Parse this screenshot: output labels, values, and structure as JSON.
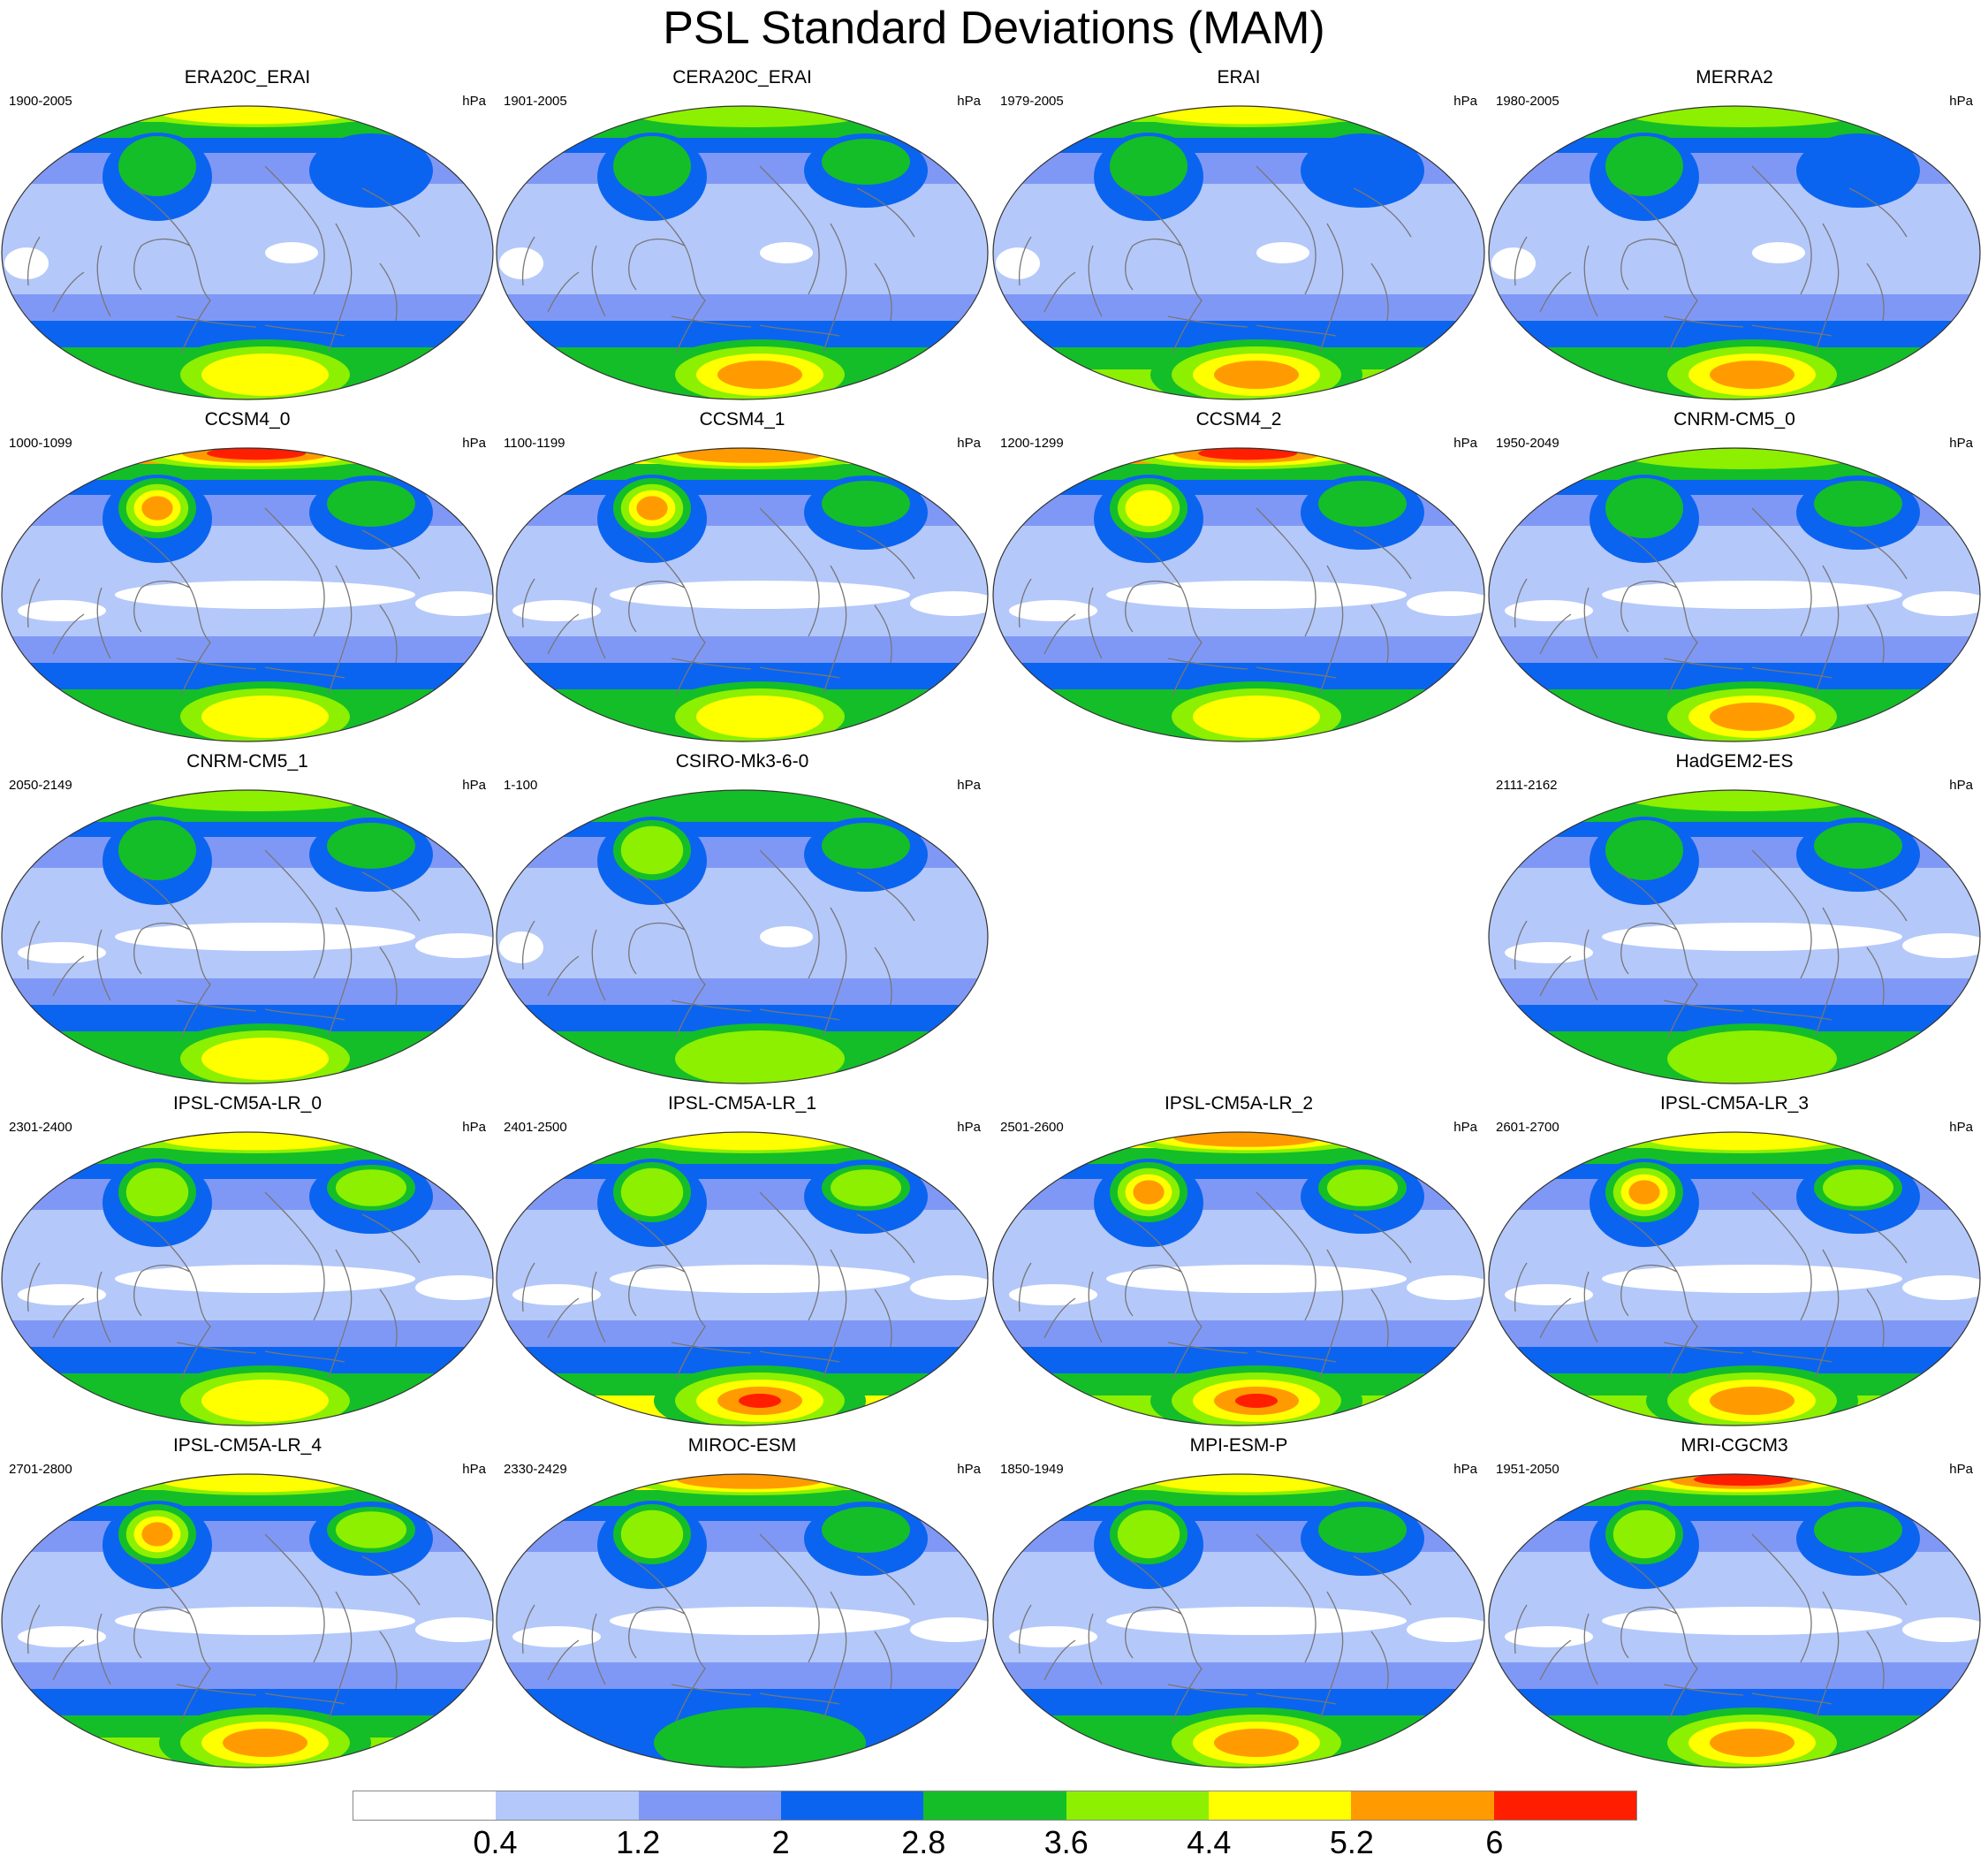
{
  "title": "PSL Standard Deviations (MAM)",
  "units": "hPa",
  "colorbar": {
    "levels": [
      "0.4",
      "1.2",
      "2",
      "2.8",
      "3.6",
      "4.4",
      "5.2",
      "6"
    ],
    "colors": [
      "#ffffff",
      "#b4c8fa",
      "#8098f5",
      "#0a64f0",
      "#14be28",
      "#8cf000",
      "#ffff00",
      "#ff9b00",
      "#ff1e00"
    ]
  },
  "panels": [
    {
      "name": "ERA20C_ERAI",
      "period": "1900-2005",
      "levels": {
        "arctic": 6,
        "npac": 4,
        "natl": 3,
        "trop": 1,
        "south": 4,
        "antarctic": 6
      }
    },
    {
      "name": "CERA20C_ERAI",
      "period": "1901-2005",
      "levels": {
        "arctic": 5,
        "npac": 4,
        "natl": 4,
        "trop": 1,
        "south": 4,
        "antarctic": 7
      }
    },
    {
      "name": "ERAI",
      "period": "1979-2005",
      "levels": {
        "arctic": 6,
        "npac": 4,
        "natl": 3,
        "trop": 1,
        "south": 5,
        "antarctic": 7
      }
    },
    {
      "name": "MERRA2",
      "period": "1980-2005",
      "levels": {
        "arctic": 5,
        "npac": 4,
        "natl": 3,
        "trop": 1,
        "south": 4,
        "antarctic": 7
      }
    },
    {
      "name": "CCSM4_0",
      "period": "1000-1099",
      "levels": {
        "arctic": 8,
        "npac": 7,
        "natl": 4,
        "trop": 0,
        "south": 4,
        "antarctic": 6
      }
    },
    {
      "name": "CCSM4_1",
      "period": "1100-1199",
      "levels": {
        "arctic": 7,
        "npac": 7,
        "natl": 4,
        "trop": 0,
        "south": 4,
        "antarctic": 6
      }
    },
    {
      "name": "CCSM4_2",
      "period": "1200-1299",
      "levels": {
        "arctic": 8,
        "npac": 6,
        "natl": 4,
        "trop": 0,
        "south": 4,
        "antarctic": 6
      }
    },
    {
      "name": "CNRM-CM5_0",
      "period": "1950-2049",
      "levels": {
        "arctic": 5,
        "npac": 4,
        "natl": 4,
        "trop": 0,
        "south": 4,
        "antarctic": 7
      }
    },
    {
      "name": "CNRM-CM5_1",
      "period": "2050-2149",
      "levels": {
        "arctic": 5,
        "npac": 4,
        "natl": 4,
        "trop": 0,
        "south": 4,
        "antarctic": 6
      }
    },
    {
      "name": "CSIRO-Mk3-6-0",
      "period": "1-100",
      "levels": {
        "arctic": 4,
        "npac": 5,
        "natl": 4,
        "trop": 1,
        "south": 4,
        "antarctic": 5
      }
    },
    null,
    {
      "name": "HadGEM2-ES",
      "period": "2111-2162",
      "levels": {
        "arctic": 5,
        "npac": 4,
        "natl": 4,
        "trop": 0,
        "south": 4,
        "antarctic": 5
      }
    },
    {
      "name": "IPSL-CM5A-LR_0",
      "period": "2301-2400",
      "levels": {
        "arctic": 6,
        "npac": 5,
        "natl": 5,
        "trop": 0,
        "south": 4,
        "antarctic": 6
      }
    },
    {
      "name": "IPSL-CM5A-LR_1",
      "period": "2401-2500",
      "levels": {
        "arctic": 6,
        "npac": 5,
        "natl": 5,
        "trop": 0,
        "south": 6,
        "antarctic": 8
      }
    },
    {
      "name": "IPSL-CM5A-LR_2",
      "period": "2501-2600",
      "levels": {
        "arctic": 7,
        "npac": 7,
        "natl": 5,
        "trop": 0,
        "south": 5,
        "antarctic": 8
      }
    },
    {
      "name": "IPSL-CM5A-LR_3",
      "period": "2601-2700",
      "levels": {
        "arctic": 6,
        "npac": 7,
        "natl": 5,
        "trop": 0,
        "south": 5,
        "antarctic": 7
      }
    },
    {
      "name": "IPSL-CM5A-LR_4",
      "period": "2701-2800",
      "levels": {
        "arctic": 6,
        "npac": 7,
        "natl": 5,
        "trop": 0,
        "south": 5,
        "antarctic": 7
      }
    },
    {
      "name": "MIROC-ESM",
      "period": "2330-2429",
      "levels": {
        "arctic": 7,
        "npac": 5,
        "natl": 4,
        "trop": 0,
        "south": 3,
        "antarctic": 4
      }
    },
    {
      "name": "MPI-ESM-P",
      "period": "1850-1949",
      "levels": {
        "arctic": 6,
        "npac": 5,
        "natl": 4,
        "trop": 0,
        "south": 4,
        "antarctic": 7
      }
    },
    {
      "name": "MRI-CGCM3",
      "period": "1951-2050",
      "levels": {
        "arctic": 8,
        "npac": 5,
        "natl": 4,
        "trop": 0,
        "south": 4,
        "antarctic": 7
      }
    }
  ]
}
